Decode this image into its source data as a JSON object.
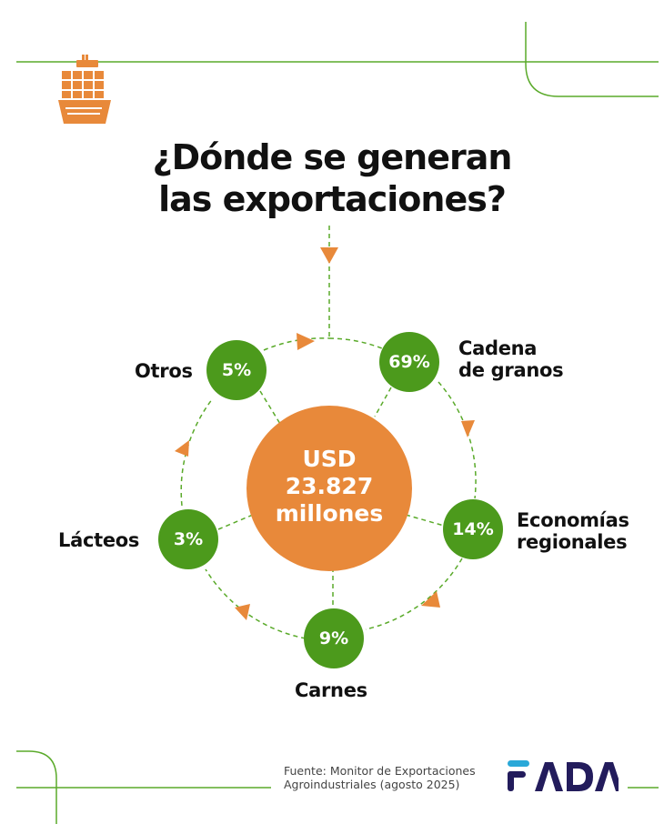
{
  "header": {
    "title_line1": "¿Dónde se generan",
    "title_line2": "las exportaciones?"
  },
  "center": {
    "line1": "USD",
    "line2": "23.827",
    "line3": "millones"
  },
  "segments": [
    {
      "label": "Cadena de granos",
      "label_line1": "Cadena",
      "label_line2": "de granos",
      "pct": "69%"
    },
    {
      "label": "Economías regionales",
      "label_line1": "Economías",
      "label_line2": "regionales",
      "pct": "14%"
    },
    {
      "label": "Carnes",
      "pct": "9%"
    },
    {
      "label": "Lácteos",
      "pct": "3%"
    },
    {
      "label": "Otros",
      "pct": "5%"
    }
  ],
  "footer": {
    "source_line1": "Fuente: Monitor de Exportaciones",
    "source_line2": "Agroindustriales (agosto 2025)",
    "logo_text": "FADA"
  },
  "colors": {
    "green": "#4c9a1c",
    "orange": "#e8893a",
    "navy": "#231c5c",
    "line_green": "#5aaa2a"
  },
  "icons": {
    "header_icon": "cargo-ship-icon"
  }
}
